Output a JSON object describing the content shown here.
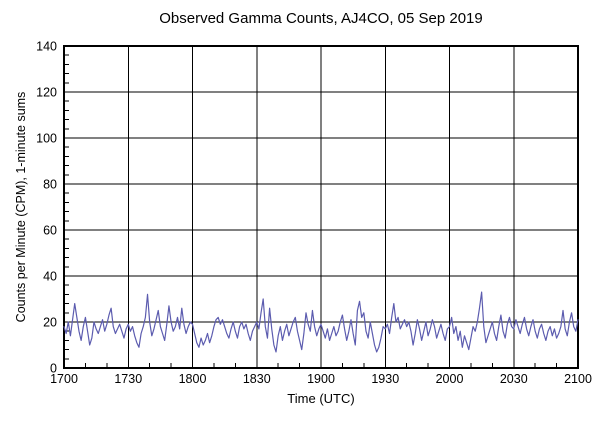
{
  "chart_data": {
    "type": "line",
    "title": "Observed Gamma Counts, AJ4CO, 05 Sep 2019",
    "xlabel": "Time (UTC)",
    "ylabel": "Counts per Minute (CPM), 1-minute sums",
    "x_tick_labels": [
      "1700",
      "1730",
      "1800",
      "1830",
      "1900",
      "1930",
      "2000",
      "2030",
      "2100"
    ],
    "x_major_interval_minutes": 30,
    "x_minor_interval_minutes": 10,
    "xlim_minutes": [
      0,
      240
    ],
    "y_tick_labels": [
      "0",
      "20",
      "40",
      "60",
      "80",
      "100",
      "120",
      "140"
    ],
    "ylim": [
      0,
      140
    ],
    "y_major_interval": 20,
    "y_minor_interval": 4,
    "grid": true,
    "legend": "none",
    "colors": {
      "line": "#5c5caf",
      "grid": "#000000",
      "border": "#000000",
      "background": "#ffffff",
      "text": "#000000"
    },
    "series": [
      {
        "name": "1-minute gamma count sums",
        "start_time_utc": "1700",
        "end_time_utc": "2100",
        "interval_minutes": 1,
        "values": [
          18,
          15,
          20,
          14,
          21,
          28,
          22,
          16,
          12,
          18,
          22,
          16,
          10,
          13,
          20,
          17,
          15,
          18,
          21,
          16,
          19,
          23,
          26,
          18,
          15,
          17,
          19,
          16,
          13,
          17,
          19,
          16,
          18,
          14,
          11,
          9,
          15,
          18,
          22,
          32,
          20,
          14,
          17,
          21,
          25,
          18,
          15,
          12,
          19,
          27,
          20,
          16,
          18,
          22,
          17,
          26,
          19,
          15,
          18,
          20,
          19,
          15,
          11,
          9,
          13,
          10,
          12,
          15,
          11,
          14,
          18,
          21,
          22,
          19,
          21,
          18,
          15,
          13,
          17,
          20,
          16,
          13,
          18,
          20,
          17,
          19,
          15,
          12,
          16,
          18,
          20,
          17,
          24,
          30,
          18,
          13,
          26,
          17,
          10,
          7,
          14,
          18,
          12,
          16,
          19,
          14,
          17,
          20,
          22,
          16,
          12,
          8,
          15,
          24,
          19,
          16,
          25,
          18,
          14,
          17,
          19,
          16,
          13,
          17,
          12,
          15,
          18,
          14,
          16,
          20,
          23,
          17,
          12,
          16,
          21,
          15,
          10,
          25,
          29,
          22,
          24,
          16,
          13,
          20,
          15,
          10,
          7,
          9,
          13,
          18,
          17,
          19,
          15,
          22,
          28,
          20,
          22,
          17,
          19,
          21,
          18,
          20,
          16,
          10,
          15,
          21,
          17,
          12,
          16,
          20,
          14,
          17,
          21,
          18,
          13,
          16,
          19,
          15,
          12,
          17,
          18,
          22,
          15,
          18,
          12,
          16,
          9,
          14,
          11,
          8,
          13,
          18,
          16,
          20,
          26,
          33,
          18,
          11,
          14,
          17,
          20,
          15,
          12,
          18,
          23,
          16,
          13,
          19,
          22,
          18,
          17,
          21,
          18,
          15,
          19,
          22,
          17,
          14,
          18,
          21,
          16,
          13,
          17,
          19,
          15,
          12,
          16,
          18,
          14,
          17,
          13,
          15,
          18,
          25,
          17,
          14,
          20,
          24,
          18,
          16,
          21
        ]
      }
    ]
  }
}
